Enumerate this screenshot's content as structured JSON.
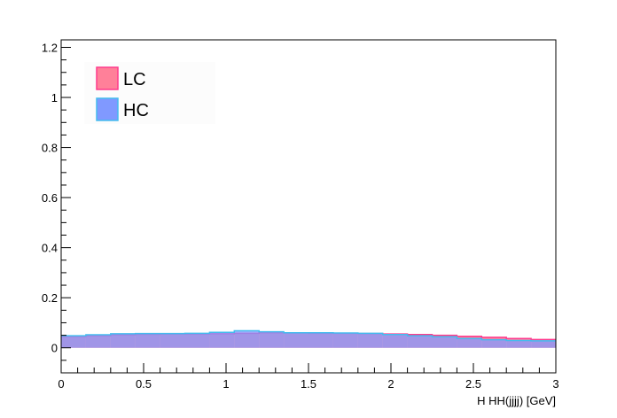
{
  "chart_data": {
    "type": "area",
    "style": "stacked-free histograms (overlaid, filled, semi-transparent)",
    "title": "",
    "xlabel": "Η HH(jjjj) [GeV]",
    "ylabel": "",
    "xlim": [
      0,
      3
    ],
    "ylim": [
      -0.1,
      1.23
    ],
    "x_ticks": [
      0,
      0.5,
      1,
      1.5,
      2,
      2.5,
      3
    ],
    "x_tick_labels": [
      "0",
      "0.5",
      "1",
      "1.5",
      "2",
      "2.5",
      "3"
    ],
    "y_ticks": [
      0,
      0.2,
      0.4,
      0.6,
      0.8,
      1,
      1.2
    ],
    "y_tick_labels": [
      "0",
      "0.2",
      "0.4",
      "0.6",
      "0.8",
      "1",
      "1.2"
    ],
    "grid": false,
    "legend_position": "top-left",
    "bin_edges": [
      0,
      0.15,
      0.3,
      0.45,
      0.6,
      0.75,
      0.9,
      1.05,
      1.2,
      1.35,
      1.5,
      1.65,
      1.8,
      1.95,
      2.1,
      2.25,
      2.4,
      2.55,
      2.7,
      2.85,
      3.0
    ],
    "series": [
      {
        "name": "LC",
        "fill_color": "#ff8099",
        "line_color": "#ff3a8c",
        "values": [
          0.045,
          0.048,
          0.052,
          0.054,
          0.055,
          0.055,
          0.056,
          0.058,
          0.06,
          0.059,
          0.058,
          0.058,
          0.057,
          0.055,
          0.053,
          0.05,
          0.046,
          0.042,
          0.037,
          0.033
        ]
      },
      {
        "name": "HC",
        "fill_color": "#8099ff",
        "line_color": "#44bbee",
        "values": [
          0.048,
          0.052,
          0.056,
          0.057,
          0.057,
          0.058,
          0.062,
          0.068,
          0.064,
          0.06,
          0.06,
          0.059,
          0.058,
          0.053,
          0.048,
          0.044,
          0.037,
          0.032,
          0.029,
          0.028
        ]
      }
    ]
  }
}
